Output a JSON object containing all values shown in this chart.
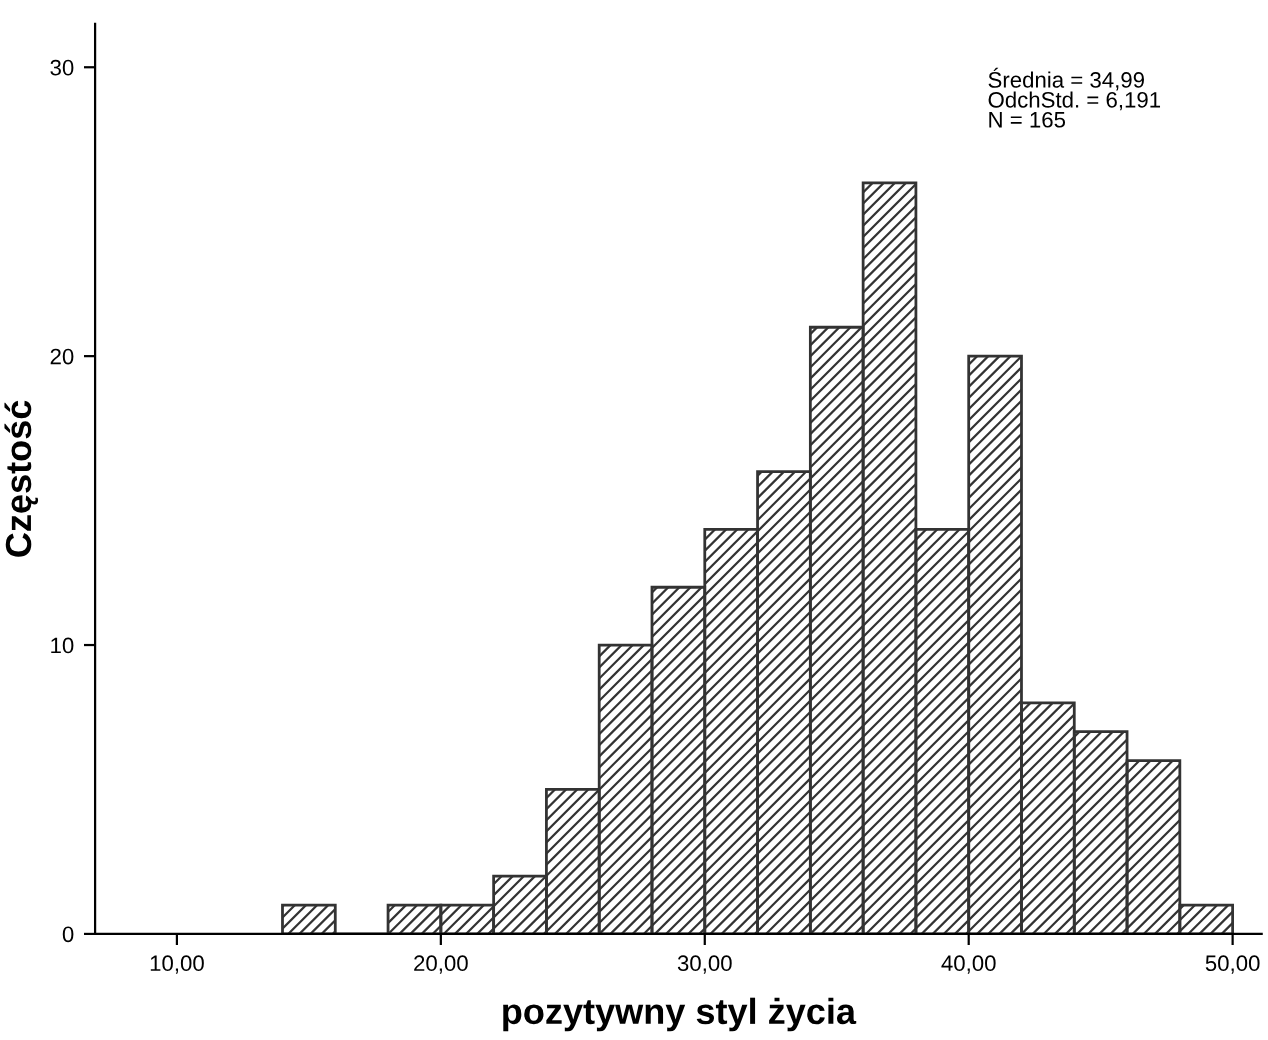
{
  "chart_data": {
    "type": "histogram",
    "xlabel": "pozytywny styl życia",
    "ylabel": "Częstość",
    "bins": [
      14,
      16,
      18,
      20,
      22,
      24,
      26,
      28,
      30,
      32,
      34,
      36,
      38,
      40,
      42,
      44,
      46,
      48,
      50
    ],
    "values": [
      1,
      0,
      1,
      1,
      2,
      5,
      10,
      12,
      14,
      16,
      21,
      26,
      14,
      20,
      8,
      7,
      6,
      1
    ],
    "color": "#333333",
    "xlim": [
      6.9,
      51.1
    ],
    "ylim": [
      0,
      31.5
    ],
    "xticks": [
      {
        "value": 10,
        "label": "10,00"
      },
      {
        "value": 20,
        "label": "20,00"
      },
      {
        "value": 30,
        "label": "30,00"
      },
      {
        "value": 40,
        "label": "40,00"
      },
      {
        "value": 50,
        "label": "50,00"
      }
    ],
    "yticks": [
      0,
      10,
      20,
      30
    ],
    "annotations": [
      "Średnia = 34,99\nOdchStd. = 6,191\nN = 165"
    ],
    "grid": false,
    "legend": false
  }
}
